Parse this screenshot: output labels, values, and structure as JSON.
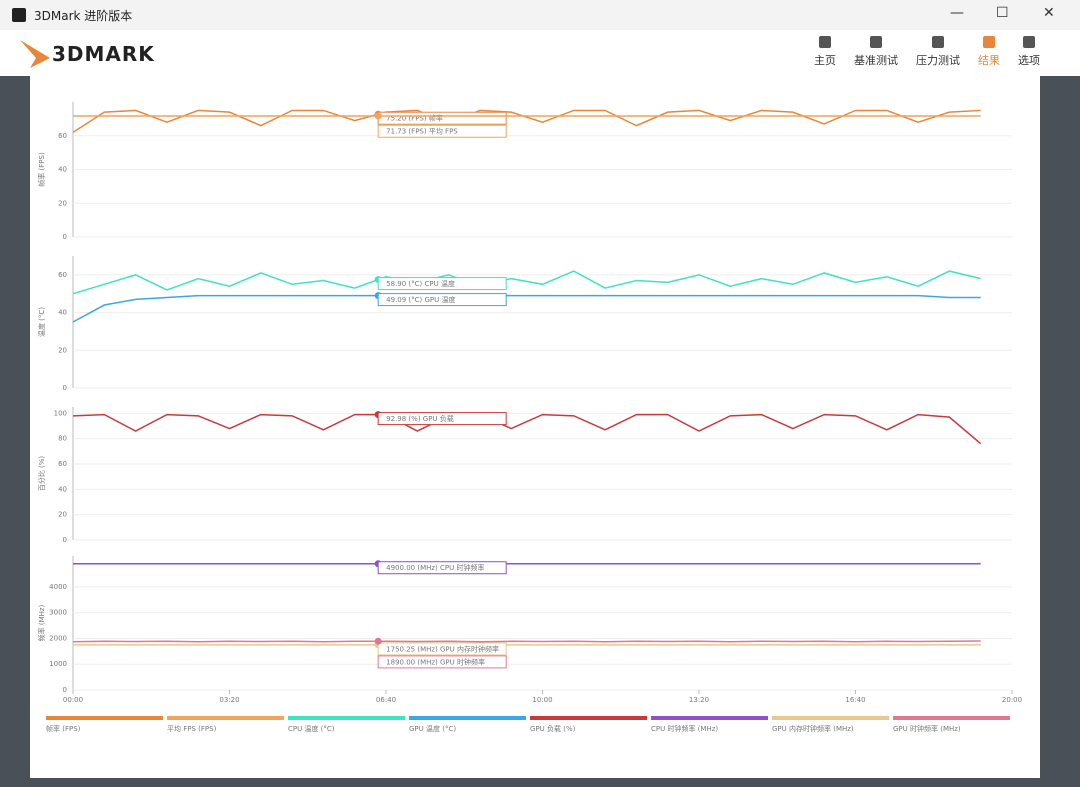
{
  "window": {
    "title": "3DMark 进阶版本"
  },
  "header": {
    "logo": "3DMARK",
    "nav": [
      "主页",
      "基准测试",
      "压力测试",
      "结果",
      "选项"
    ]
  },
  "chart_data": [
    {
      "type": "line",
      "y_label": "帧率 (FPS)",
      "ylim": [
        0,
        80
      ],
      "yticks": [
        0,
        20,
        40,
        60
      ],
      "grid": true,
      "xlim": [
        0,
        1200
      ],
      "cursor_x": 390,
      "x": [
        0,
        40,
        80,
        120,
        160,
        200,
        240,
        280,
        320,
        360,
        400,
        440,
        480,
        520,
        560,
        600,
        640,
        680,
        720,
        760,
        800,
        840,
        880,
        920,
        960,
        1000,
        1040,
        1080,
        1120,
        1160
      ],
      "series": [
        {
          "name": "帧率 (FPS)",
          "color": "#e8873a",
          "tooltip": "75.20 (FPS) 帧率",
          "values": [
            62,
            74,
            75,
            68,
            75,
            74,
            66,
            75,
            75,
            69,
            74,
            75,
            67,
            75,
            74,
            68,
            75,
            75,
            66,
            74,
            75,
            69,
            75,
            74,
            67,
            75,
            75,
            68,
            74,
            75
          ]
        },
        {
          "name": "平均 FPS (FPS)",
          "color": "#f0a45e",
          "tooltip": "71.73 (FPS) 平均 FPS",
          "values": [
            71.73,
            71.73,
            71.73,
            71.73,
            71.73,
            71.73,
            71.73,
            71.73,
            71.73,
            71.73,
            71.73,
            71.73,
            71.73,
            71.73,
            71.73,
            71.73,
            71.73,
            71.73,
            71.73,
            71.73,
            71.73,
            71.73,
            71.73,
            71.73,
            71.73,
            71.73,
            71.73,
            71.73,
            71.73,
            71.73
          ]
        }
      ]
    },
    {
      "type": "line",
      "y_label": "温度 (°C)",
      "ylim": [
        0,
        70
      ],
      "yticks": [
        0,
        20,
        40,
        60
      ],
      "grid": true,
      "xlim": [
        0,
        1200
      ],
      "cursor_x": 390,
      "x": [
        0,
        40,
        80,
        120,
        160,
        200,
        240,
        280,
        320,
        360,
        400,
        440,
        480,
        520,
        560,
        600,
        640,
        680,
        720,
        760,
        800,
        840,
        880,
        920,
        960,
        1000,
        1040,
        1080,
        1120,
        1160
      ],
      "series": [
        {
          "name": "CPU 温度 (°C)",
          "color": "#3ee3c0",
          "tooltip": "58.90 (°C) CPU 温度",
          "values": [
            50,
            55,
            60,
            52,
            58,
            54,
            61,
            55,
            57,
            53,
            59,
            56,
            60,
            54,
            58,
            55,
            62,
            53,
            57,
            56,
            60,
            54,
            58,
            55,
            61,
            56,
            59,
            54,
            62,
            58
          ]
        },
        {
          "name": "GPU 温度 (°C)",
          "color": "#3aa9e2",
          "tooltip": "49.09 (°C) GPU 温度",
          "values": [
            35,
            44,
            47,
            48,
            49,
            49,
            49,
            49,
            49,
            49,
            49,
            49,
            49,
            49,
            49,
            49,
            49,
            49,
            49,
            49,
            49,
            49,
            49,
            49,
            49,
            49,
            49,
            49,
            48,
            48
          ]
        }
      ]
    },
    {
      "type": "line",
      "y_label": "百分比 (%)",
      "ylim": [
        0,
        105
      ],
      "yticks": [
        0,
        20,
        40,
        60,
        80,
        100
      ],
      "grid": true,
      "xlim": [
        0,
        1200
      ],
      "cursor_x": 390,
      "x": [
        0,
        40,
        80,
        120,
        160,
        200,
        240,
        280,
        320,
        360,
        400,
        440,
        480,
        520,
        560,
        600,
        640,
        680,
        720,
        760,
        800,
        840,
        880,
        920,
        960,
        1000,
        1040,
        1080,
        1120,
        1160
      ],
      "series": [
        {
          "name": "GPU 负载 (%)",
          "color": "#c83a3a",
          "tooltip": "92.98 (%) GPU 负载",
          "values": [
            98,
            99,
            86,
            99,
            98,
            88,
            99,
            98,
            87,
            99,
            99,
            86,
            98,
            99,
            88,
            99,
            98,
            87,
            99,
            99,
            86,
            98,
            99,
            88,
            99,
            98,
            87,
            99,
            97,
            76
          ]
        }
      ]
    },
    {
      "type": "line",
      "y_label": "频率 (MHz)",
      "ylim": [
        0,
        5200
      ],
      "yticks": [
        0,
        1000,
        2000,
        3000,
        4000
      ],
      "grid": true,
      "xlim": [
        0,
        1200
      ],
      "cursor_x": 390,
      "xticks": [
        {
          "value": 0,
          "label": "00:00"
        },
        {
          "value": 200,
          "label": "03:20"
        },
        {
          "value": 400,
          "label": "06:40"
        },
        {
          "value": 600,
          "label": "10:00"
        },
        {
          "value": 800,
          "label": "13:20"
        },
        {
          "value": 1000,
          "label": "16:40"
        },
        {
          "value": 1200,
          "label": "20:00"
        }
      ],
      "x": [
        0,
        40,
        80,
        120,
        160,
        200,
        240,
        280,
        320,
        360,
        400,
        440,
        480,
        520,
        560,
        600,
        640,
        680,
        720,
        760,
        800,
        840,
        880,
        920,
        960,
        1000,
        1040,
        1080,
        1120,
        1160
      ],
      "series": [
        {
          "name": "CPU 时钟频率 (MHz)",
          "color": "#9050c8",
          "tooltip": "4900.00 (MHz) CPU 时钟频率",
          "values": [
            4900,
            4900,
            4900,
            4900,
            4900,
            4900,
            4900,
            4900,
            4900,
            4900,
            4900,
            4900,
            4900,
            4900,
            4900,
            4900,
            4900,
            4900,
            4900,
            4900,
            4900,
            4900,
            4900,
            4900,
            4900,
            4900,
            4900,
            4900,
            4900,
            4900
          ]
        },
        {
          "name": "GPU 内存时钟频率 (MHz)",
          "color": "#e8c88e",
          "tooltip": "1750.25 (MHz) GPU 内存时钟频率",
          "values": [
            1750.25,
            1750.25,
            1750.25,
            1750.25,
            1750.25,
            1750.25,
            1750.25,
            1750.25,
            1750.25,
            1750.25,
            1750.25,
            1750.25,
            1750.25,
            1750.25,
            1750.25,
            1750.25,
            1750.25,
            1750.25,
            1750.25,
            1750.25,
            1750.25,
            1750.25,
            1750.25,
            1750.25,
            1750.25,
            1750.25,
            1750.25,
            1750.25,
            1750.25,
            1750.25
          ]
        },
        {
          "name": "GPU 时钟频率 (MHz)",
          "color": "#e07892",
          "tooltip": "1890.00 (MHz) GPU 时钟频率",
          "values": [
            1870,
            1890,
            1880,
            1890,
            1870,
            1890,
            1880,
            1890,
            1870,
            1890,
            1890,
            1880,
            1890,
            1870,
            1890,
            1880,
            1890,
            1870,
            1890,
            1880,
            1890,
            1870,
            1890,
            1880,
            1890,
            1870,
            1890,
            1880,
            1890,
            1900
          ]
        }
      ]
    }
  ]
}
